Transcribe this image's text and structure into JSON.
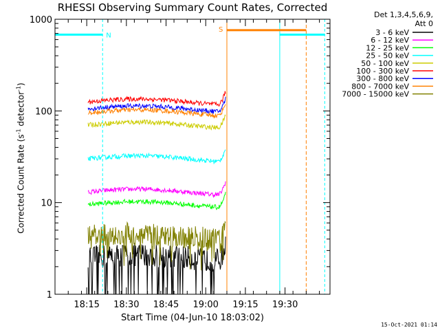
{
  "chart_data": {
    "type": "line",
    "title": "RHESSI Observing Summary Count Rates, Corrected",
    "xlabel": "Start Time (04-Jun-10 18:03:02)",
    "ylabel": "Corrected Count Rate (s",
    "ylabel_sup1": "-1",
    "ylabel_mid": " detector",
    "ylabel_sup2": "-1",
    "ylabel_end": ")",
    "yscale": "log",
    "ylim": [
      1,
      1000
    ],
    "yticks": [
      "1",
      "10",
      "100",
      "1000"
    ],
    "xlim_minutes": [
      0,
      104
    ],
    "xticks": [
      {
        "label": "18:15",
        "min": 12
      },
      {
        "label": "18:30",
        "min": 27
      },
      {
        "label": "18:45",
        "min": 42
      },
      {
        "label": "19:00",
        "min": 57
      },
      {
        "label": "19:15",
        "min": 72
      },
      {
        "label": "19:30",
        "min": 87
      }
    ],
    "legend_header": [
      "Det 1,3,4,5,6,9,",
      "Att 0"
    ],
    "legend_position": "top-right",
    "annotations": [
      {
        "text": "N",
        "color": "#00ffff"
      },
      {
        "text": "S",
        "color": "#ff8000"
      }
    ],
    "night_markers": {
      "color": "#00ffff",
      "solid_min": [
        0,
        85
      ],
      "dashed_min": [
        18,
        102
      ],
      "bar_min": [
        [
          0,
          18
        ],
        [
          85,
          102
        ]
      ],
      "bar_value": 680
    },
    "saa_markers": {
      "color": "#ff8000",
      "solid_min": [
        65
      ],
      "dashed_min": [
        95
      ],
      "bar_min": [
        [
          65,
          95
        ]
      ],
      "bar_value": 760
    },
    "series": [
      {
        "name": "3 - 6 keV",
        "color": "#000000",
        "level": 2.5
      },
      {
        "name": "6 - 12 keV",
        "color": "#ff00ff",
        "level": 13
      },
      {
        "name": "12 - 25 keV",
        "color": "#00ff00",
        "level": 9.5
      },
      {
        "name": "25 - 50 keV",
        "color": "#00ffff",
        "level": 30
      },
      {
        "name": "50 - 100 keV",
        "color": "#cccc00",
        "level": 70
      },
      {
        "name": "100 - 300 keV",
        "color": "#ff0000",
        "level": 125
      },
      {
        "name": "300 - 800 keV",
        "color": "#0000ff",
        "level": 105
      },
      {
        "name": "800 - 7000 keV",
        "color": "#ff8000",
        "level": 95
      },
      {
        "name": "7000 - 15000 keV",
        "color": "#808000",
        "level": 4.2
      }
    ],
    "data_start_min": 12.5,
    "data_end_min": 64.5
  },
  "timestamp": "15-Oct-2021 01:14"
}
